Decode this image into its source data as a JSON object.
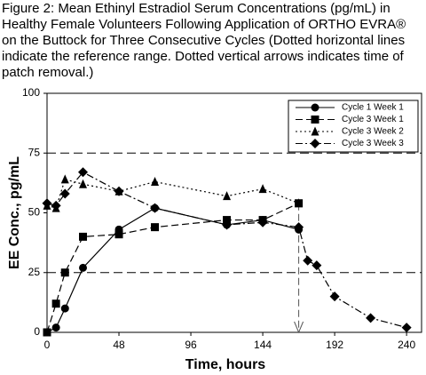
{
  "chart_data": {
    "type": "line",
    "title": "Figure 2: Mean Ethinyl Estradiol Serum Concentrations (pg/mL) in Healthy Female Volunteers Following Application of ORTHO EVRA® on the Buttock for Three Consecutive Cycles (Dotted horizontal lines indicate the reference range. Dotted vertical arrows indicates time of patch removal.)",
    "x_label": "Time, hours",
    "y_label": "EE Conc., pg/mL",
    "xlim": [
      0,
      250
    ],
    "xticks": [
      0,
      48,
      96,
      144,
      192,
      240
    ],
    "ylim": [
      0,
      100
    ],
    "yticks": [
      0,
      25,
      50,
      75,
      100
    ],
    "reference_lines": [
      25,
      75
    ],
    "arrows": [
      {
        "x": 168,
        "from": 54,
        "to": 0
      }
    ],
    "legend": "upper right",
    "series": [
      {
        "name": "Cycle 1 Week 1",
        "color": "#000000",
        "marker": "circle",
        "dash": "solid",
        "x": [
          0,
          6,
          12,
          24,
          48,
          72,
          120,
          144,
          168
        ],
        "values": [
          0,
          2,
          10,
          27,
          43,
          52,
          45,
          47,
          43
        ]
      },
      {
        "name": "Cycle 3 Week 1",
        "color": "#000000",
        "marker": "square",
        "dash": "dashed",
        "x": [
          0,
          6,
          12,
          24,
          48,
          72,
          120,
          144,
          168
        ],
        "values": [
          0,
          12,
          25,
          40,
          41,
          44,
          47,
          47,
          54
        ]
      },
      {
        "name": "Cycle 3 Week 2",
        "color": "#000000",
        "marker": "triangle",
        "dash": "dotted",
        "x": [
          0,
          6,
          12,
          24,
          48,
          72,
          120,
          144,
          168
        ],
        "values": [
          53,
          52,
          64,
          62,
          59,
          63,
          57,
          60,
          54
        ]
      },
      {
        "name": "Cycle 3 Week 3",
        "color": "#000000",
        "marker": "diamond",
        "dash": "dashdot",
        "x": [
          0,
          6,
          12,
          24,
          48,
          72,
          120,
          144,
          168,
          174,
          180,
          192,
          216,
          240
        ],
        "values": [
          54,
          53,
          58,
          67,
          59,
          52,
          45,
          46,
          44,
          30,
          28,
          15,
          6,
          2
        ]
      }
    ]
  }
}
